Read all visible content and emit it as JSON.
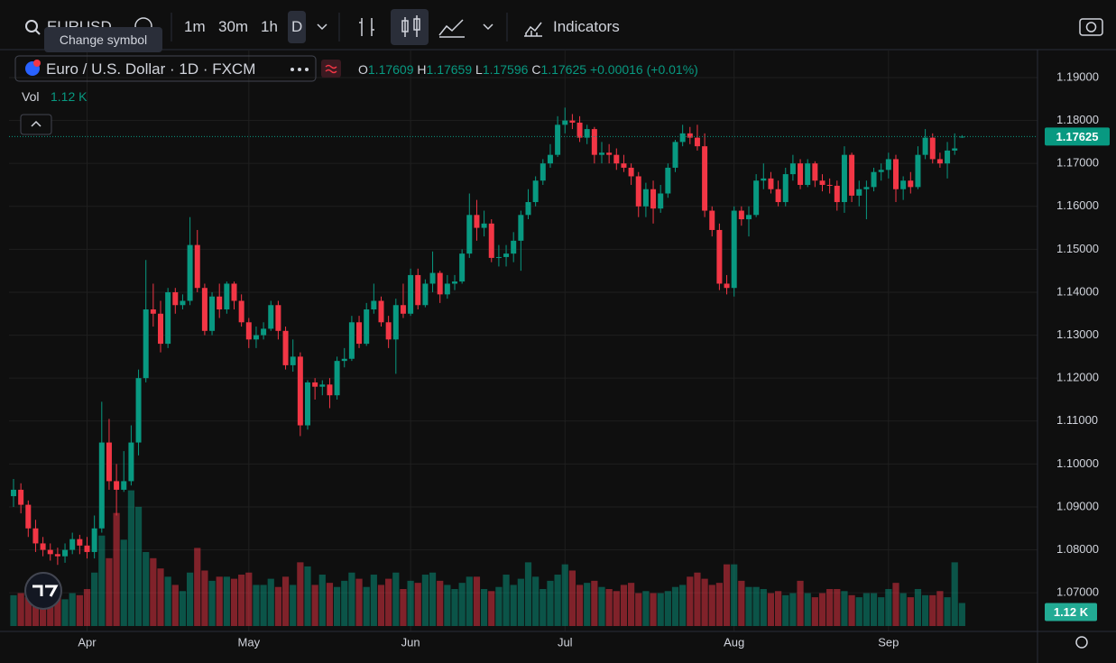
{
  "toolbar": {
    "symbol": "EURUSD",
    "tooltip": "Change symbol",
    "intervals": [
      "1m",
      "30m",
      "1h",
      "D"
    ],
    "indicators": "Indicators"
  },
  "legend": {
    "title": "Euro / U.S. Dollar · 1D · FXCM",
    "ohlc_keys": [
      "O",
      "H",
      "L",
      "C"
    ],
    "ohlc_labels": [
      "1.17609",
      "1.17659",
      "1.17596",
      "1.17625"
    ],
    "change": "+0.00016 (+0.01%)",
    "volume_title": "Vol"
  },
  "chart_data": {
    "type": "candlestick",
    "grid": true,
    "up_color": "#089981",
    "down_color": "#f23645",
    "categories": [
      null,
      null,
      null,
      null,
      null,
      null,
      null,
      null,
      null,
      null,
      "Apr",
      null,
      null,
      null,
      null,
      null,
      null,
      null,
      null,
      null,
      null,
      null,
      null,
      null,
      null,
      null,
      null,
      null,
      null,
      null,
      null,
      null,
      "May",
      null,
      null,
      null,
      null,
      null,
      null,
      null,
      null,
      null,
      null,
      null,
      null,
      null,
      null,
      null,
      null,
      null,
      null,
      null,
      null,
      null,
      "Jun",
      null,
      null,
      null,
      null,
      null,
      null,
      null,
      null,
      null,
      null,
      null,
      null,
      null,
      null,
      null,
      null,
      null,
      null,
      null,
      null,
      "Jul",
      null,
      null,
      null,
      null,
      null,
      null,
      null,
      null,
      null,
      null,
      null,
      null,
      null,
      null,
      null,
      null,
      null,
      null,
      null,
      null,
      null,
      null,
      "Aug",
      null,
      null,
      null,
      null,
      null,
      null,
      null,
      null,
      null,
      null,
      null,
      null,
      null,
      null,
      null,
      null,
      null,
      null,
      null,
      null,
      "Sep",
      null,
      null,
      null,
      null,
      null,
      null,
      null,
      null,
      null,
      null
    ],
    "open": [
      1.0925,
      1.094,
      1.0905,
      1.085,
      1.0815,
      1.08,
      1.079,
      1.0785,
      1.08,
      1.0825,
      1.081,
      1.0795,
      1.085,
      1.105,
      1.096,
      1.094,
      1.096,
      1.105,
      1.12,
      1.136,
      1.135,
      1.128,
      1.14,
      1.137,
      1.138,
      1.151,
      1.141,
      1.131,
      1.139,
      1.136,
      1.142,
      1.138,
      1.133,
      1.129,
      1.13,
      1.1315,
      1.137,
      1.131,
      1.123,
      1.125,
      1.109,
      1.119,
      1.118,
      1.1185,
      1.116,
      1.124,
      1.1245,
      1.133,
      1.128,
      1.136,
      1.138,
      1.133,
      1.129,
      1.137,
      1.135,
      1.144,
      1.137,
      1.142,
      1.1445,
      1.1395,
      1.142,
      1.1425,
      1.149,
      1.158,
      1.155,
      1.156,
      1.148,
      1.1482,
      1.149,
      1.152,
      1.158,
      1.161,
      1.166,
      1.17,
      1.172,
      1.179,
      1.18,
      1.1795,
      1.176,
      1.178,
      1.172,
      1.1725,
      1.172,
      1.17,
      1.169,
      1.167,
      1.16,
      1.164,
      1.1595,
      1.163,
      1.169,
      1.175,
      1.177,
      1.176,
      1.174,
      1.159,
      1.1545,
      1.142,
      1.141,
      1.159,
      1.157,
      1.158,
      1.166,
      1.1665,
      1.164,
      1.161,
      1.1675,
      1.17,
      1.165,
      1.17,
      1.166,
      1.165,
      1.1648,
      1.161,
      1.172,
      1.1625,
      1.164,
      1.1645,
      1.168,
      1.1685,
      1.171,
      1.164,
      1.166,
      1.1645,
      1.172,
      1.176,
      1.171,
      1.17,
      1.173,
      1.17609
    ],
    "high": [
      1.0965,
      1.0955,
      1.0915,
      1.087,
      1.083,
      1.0815,
      1.0805,
      1.0815,
      1.084,
      1.0835,
      1.083,
      1.088,
      1.1145,
      1.1105,
      1.1,
      1.103,
      1.109,
      1.122,
      1.1475,
      1.142,
      1.138,
      1.141,
      1.141,
      1.1395,
      1.1575,
      1.1545,
      1.142,
      1.14,
      1.142,
      1.1425,
      1.1425,
      1.1395,
      1.134,
      1.132,
      1.133,
      1.138,
      1.138,
      1.132,
      1.129,
      1.126,
      1.1195,
      1.12,
      1.1195,
      1.12,
      1.125,
      1.127,
      1.1345,
      1.1345,
      1.1375,
      1.142,
      1.139,
      1.1345,
      1.1385,
      1.142,
      1.1455,
      1.1455,
      1.143,
      1.1495,
      1.145,
      1.144,
      1.144,
      1.15,
      1.163,
      1.1615,
      1.159,
      1.157,
      1.151,
      1.151,
      1.154,
      1.159,
      1.164,
      1.167,
      1.171,
      1.1745,
      1.181,
      1.183,
      1.1815,
      1.181,
      1.179,
      1.1785,
      1.175,
      1.1745,
      1.1735,
      1.172,
      1.17,
      1.168,
      1.1655,
      1.166,
      1.165,
      1.17,
      1.1755,
      1.179,
      1.1785,
      1.179,
      1.177,
      1.16,
      1.156,
      1.144,
      1.16,
      1.16,
      1.16,
      1.1675,
      1.17,
      1.168,
      1.166,
      1.169,
      1.172,
      1.171,
      1.171,
      1.1705,
      1.1675,
      1.1665,
      1.166,
      1.174,
      1.1725,
      1.166,
      1.166,
      1.169,
      1.17,
      1.1725,
      1.172,
      1.167,
      1.168,
      1.174,
      1.178,
      1.177,
      1.1725,
      1.175,
      1.177,
      1.17659
    ],
    "low": [
      1.09,
      1.0885,
      1.083,
      1.0795,
      1.0785,
      1.0775,
      1.0765,
      1.077,
      1.079,
      1.079,
      1.078,
      1.078,
      1.084,
      1.094,
      1.088,
      1.0935,
      1.095,
      1.102,
      1.119,
      1.132,
      1.126,
      1.127,
      1.135,
      1.136,
      1.137,
      1.14,
      1.13,
      1.13,
      1.134,
      1.135,
      1.136,
      1.132,
      1.127,
      1.127,
      1.129,
      1.131,
      1.129,
      1.122,
      1.1215,
      1.1065,
      1.108,
      1.115,
      1.116,
      1.113,
      1.115,
      1.1225,
      1.124,
      1.127,
      1.1275,
      1.135,
      1.132,
      1.127,
      1.121,
      1.134,
      1.1345,
      1.136,
      1.1365,
      1.14,
      1.1375,
      1.1385,
      1.1405,
      1.142,
      1.148,
      1.152,
      1.153,
      1.147,
      1.146,
      1.146,
      1.147,
      1.145,
      1.157,
      1.16,
      1.165,
      1.169,
      1.1715,
      1.177,
      1.178,
      1.175,
      1.1745,
      1.17,
      1.17,
      1.17,
      1.1685,
      1.168,
      1.165,
      1.1575,
      1.1575,
      1.156,
      1.1585,
      1.162,
      1.168,
      1.174,
      1.1745,
      1.173,
      1.1575,
      1.153,
      1.1405,
      1.1395,
      1.139,
      1.1555,
      1.153,
      1.1575,
      1.164,
      1.163,
      1.16,
      1.16,
      1.166,
      1.164,
      1.1645,
      1.1645,
      1.1635,
      1.163,
      1.159,
      1.1585,
      1.161,
      1.16,
      1.157,
      1.1635,
      1.166,
      1.1665,
      1.161,
      1.1615,
      1.163,
      1.164,
      1.171,
      1.17,
      1.169,
      1.1665,
      1.172,
      1.17596
    ],
    "close": [
      1.094,
      1.0905,
      1.085,
      1.0815,
      1.08,
      1.079,
      1.0785,
      1.08,
      1.0825,
      1.081,
      1.0795,
      1.085,
      1.105,
      1.096,
      1.094,
      1.096,
      1.105,
      1.12,
      1.136,
      1.135,
      1.128,
      1.14,
      1.137,
      1.138,
      1.151,
      1.141,
      1.131,
      1.139,
      1.136,
      1.142,
      1.138,
      1.133,
      1.129,
      1.13,
      1.1315,
      1.137,
      1.131,
      1.123,
      1.125,
      1.109,
      1.119,
      1.118,
      1.1185,
      1.116,
      1.124,
      1.1245,
      1.133,
      1.128,
      1.136,
      1.138,
      1.133,
      1.129,
      1.137,
      1.135,
      1.144,
      1.137,
      1.142,
      1.1445,
      1.1395,
      1.142,
      1.1425,
      1.149,
      1.158,
      1.155,
      1.156,
      1.148,
      1.1482,
      1.149,
      1.152,
      1.158,
      1.161,
      1.166,
      1.17,
      1.172,
      1.179,
      1.18,
      1.1795,
      1.176,
      1.178,
      1.172,
      1.1725,
      1.172,
      1.17,
      1.169,
      1.167,
      1.16,
      1.164,
      1.1595,
      1.163,
      1.169,
      1.175,
      1.177,
      1.176,
      1.174,
      1.159,
      1.1545,
      1.142,
      1.141,
      1.159,
      1.157,
      1.158,
      1.166,
      1.1665,
      1.164,
      1.161,
      1.1675,
      1.17,
      1.165,
      1.17,
      1.166,
      1.165,
      1.1648,
      1.161,
      1.172,
      1.1625,
      1.164,
      1.1645,
      1.168,
      1.1685,
      1.171,
      1.164,
      1.166,
      1.1645,
      1.172,
      1.176,
      1.171,
      1.17,
      1.173,
      1.1735,
      1.17625
    ],
    "volume": [
      1.5,
      1.6,
      1.4,
      1.3,
      1.3,
      1.5,
      1.4,
      1.3,
      1.6,
      1.5,
      1.8,
      2.6,
      4.4,
      3.3,
      5.5,
      4.2,
      6.6,
      5.8,
      3.6,
      3.3,
      2.8,
      2.4,
      2.0,
      1.7,
      2.6,
      3.8,
      2.7,
      2.2,
      2.4,
      2.4,
      2.3,
      2.5,
      2.6,
      2.0,
      2.0,
      2.3,
      1.9,
      2.4,
      2.0,
      3.1,
      2.9,
      2.0,
      2.5,
      2.1,
      1.9,
      2.2,
      2.6,
      2.3,
      1.9,
      2.5,
      2.0,
      2.3,
      2.6,
      1.8,
      2.2,
      2.1,
      2.5,
      2.6,
      2.2,
      2.0,
      1.8,
      2.1,
      2.4,
      2.4,
      1.8,
      1.7,
      1.9,
      2.5,
      2.0,
      2.3,
      3.1,
      2.4,
      1.8,
      2.2,
      2.5,
      3.0,
      2.7,
      2.0,
      2.1,
      2.2,
      1.9,
      1.8,
      1.7,
      2.0,
      2.1,
      1.6,
      1.7,
      1.6,
      1.6,
      1.7,
      1.9,
      2.0,
      2.4,
      2.6,
      2.3,
      2.0,
      2.1,
      3.0,
      3.0,
      2.2,
      1.9,
      1.9,
      1.8,
      1.6,
      1.7,
      1.5,
      1.6,
      2.2,
      1.6,
      1.4,
      1.6,
      1.8,
      1.8,
      1.7,
      1.5,
      1.4,
      1.6,
      1.6,
      1.4,
      1.8,
      2.1,
      1.6,
      1.4,
      1.8,
      1.5,
      1.5,
      1.7,
      1.4,
      3.1,
      1.12
    ],
    "volume_value_label": "1.12 K",
    "ylim": [
      1.061,
      1.1963
    ],
    "volume_lim": [
      0,
      28
    ],
    "yticks": [
      {
        "value": 1.07,
        "label": "1.07000"
      },
      {
        "value": 1.08,
        "label": "1.08000"
      },
      {
        "value": 1.09,
        "label": "1.09000"
      },
      {
        "value": 1.1,
        "label": "1.10000"
      },
      {
        "value": 1.11,
        "label": "1.11000"
      },
      {
        "value": 1.12,
        "label": "1.12000"
      },
      {
        "value": 1.13,
        "label": "1.13000"
      },
      {
        "value": 1.14,
        "label": "1.14000"
      },
      {
        "value": 1.15,
        "label": "1.15000"
      },
      {
        "value": 1.16,
        "label": "1.16000"
      },
      {
        "value": 1.17,
        "label": "1.17000"
      },
      {
        "value": 1.18,
        "label": "1.18000"
      },
      {
        "value": 1.19,
        "label": "1.19000"
      }
    ],
    "last_price_label": "1.17625"
  }
}
